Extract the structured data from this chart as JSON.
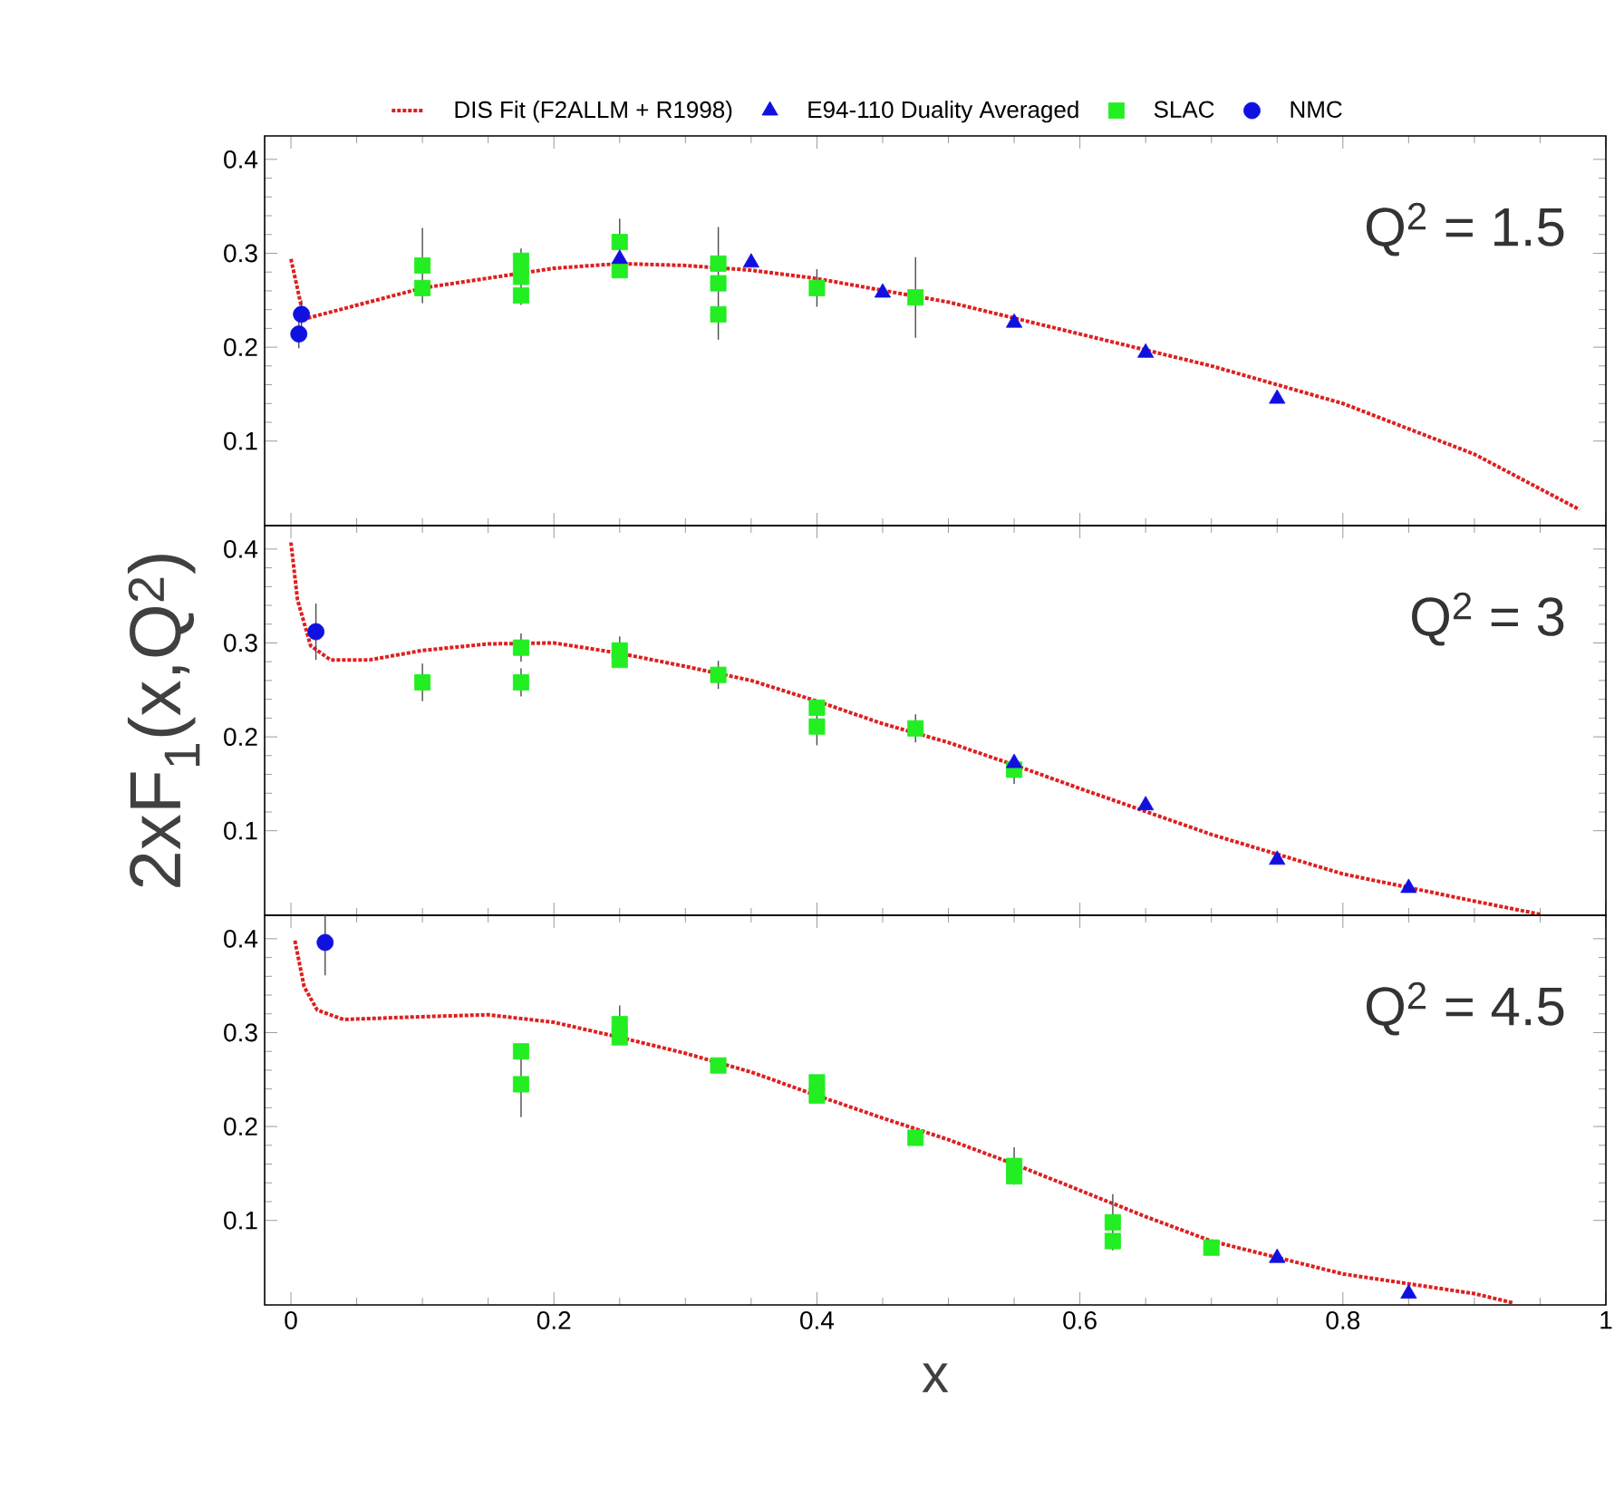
{
  "chart_data": [
    {
      "type": "scatter",
      "xlim": [
        -0.02,
        1.0
      ],
      "ylim": [
        0.01,
        0.425
      ],
      "xticks": [
        0,
        0.2,
        0.4,
        0.6,
        0.8,
        1
      ],
      "yticks": [
        0.1,
        0.2,
        0.3,
        0.4
      ],
      "tick_labels": "y",
      "legend": "top",
      "annotations": [
        "Q$^{2}$ = 1.5"
      ],
      "series": [
        {
          "name": "DIS Fit (F2ALLM + R1998)",
          "type": "line",
          "line_style": "dotted",
          "marker": "none",
          "color": "#dd2020",
          "x": [
            0,
            0.01,
            0.1,
            0.2,
            0.25,
            0.3,
            0.35,
            0.4,
            0.5,
            0.6,
            0.7,
            0.8,
            0.9,
            0.98
          ],
          "values": [
            0.294,
            0.23,
            0.263,
            0.284,
            0.289,
            0.287,
            0.282,
            0.273,
            0.248,
            0.214,
            0.18,
            0.14,
            0.086,
            0.027
          ]
        },
        {
          "name": "E94-110 Duality Averaged",
          "marker": "triangle",
          "color": "#1010e0",
          "x": [
            0.25,
            0.35,
            0.45,
            0.55,
            0.65,
            0.75
          ],
          "values": [
            0.294,
            0.29,
            0.258,
            0.226,
            0.194,
            0.145
          ]
        },
        {
          "name": "SLAC",
          "marker": "square",
          "color": "#22ee22",
          "x": [
            0.1,
            0.1,
            0.175,
            0.175,
            0.175,
            0.25,
            0.25,
            0.325,
            0.325,
            0.325,
            0.4,
            0.475
          ],
          "values": [
            0.287,
            0.263,
            0.292,
            0.275,
            0.255,
            0.312,
            0.282,
            0.289,
            0.268,
            0.235,
            0.263,
            0.253
          ],
          "errors": [
            0.04,
            null,
            null,
            0.03,
            null,
            0.025,
            null,
            null,
            0.06,
            null,
            0.02,
            0.043
          ]
        },
        {
          "name": "NMC",
          "marker": "circle",
          "color": "#1010e0",
          "x": [
            0.006,
            0.008
          ],
          "values": [
            0.214,
            0.235
          ],
          "errors": [
            0.015,
            0.015
          ]
        }
      ]
    },
    {
      "type": "scatter",
      "xlim": [
        -0.02,
        1.0
      ],
      "ylim": [
        0.01,
        0.425
      ],
      "xticks": [
        0,
        0.2,
        0.4,
        0.6,
        0.8,
        1
      ],
      "yticks": [
        0.1,
        0.2,
        0.3,
        0.4
      ],
      "tick_labels": "y",
      "ylabel": "2xF$_{1}$(x,Q$^{2}$)",
      "annotations": [
        "Q$^{2}$ = 3"
      ],
      "series": [
        {
          "type": "line",
          "line_style": "dotted",
          "marker": "none",
          "color": "#dd2020",
          "x": [
            0,
            0.005,
            0.015,
            0.03,
            0.06,
            0.1,
            0.15,
            0.2,
            0.25,
            0.3,
            0.35,
            0.4,
            0.45,
            0.5,
            0.55,
            0.6,
            0.7,
            0.8,
            0.9,
            0.95
          ],
          "values": [
            0.407,
            0.346,
            0.297,
            0.282,
            0.282,
            0.292,
            0.299,
            0.3,
            0.289,
            0.275,
            0.26,
            0.238,
            0.214,
            0.194,
            0.17,
            0.145,
            0.096,
            0.054,
            0.025,
            0.011
          ]
        },
        {
          "marker": "triangle",
          "color": "#1010e0",
          "x": [
            0.55,
            0.65,
            0.75,
            0.85
          ],
          "values": [
            0.172,
            0.127,
            0.069,
            0.039
          ]
        },
        {
          "marker": "square",
          "color": "#22ee22",
          "x": [
            0.1,
            0.175,
            0.175,
            0.25,
            0.25,
            0.325,
            0.4,
            0.4,
            0.475,
            0.55
          ],
          "values": [
            0.258,
            0.295,
            0.258,
            0.292,
            0.282,
            0.266,
            0.231,
            0.211,
            0.209,
            0.165
          ],
          "errors": [
            0.02,
            0.015,
            0.015,
            0.015,
            null,
            0.015,
            null,
            0.02,
            0.015,
            0.015
          ]
        },
        {
          "marker": "circle",
          "color": "#1010e0",
          "x": [
            0.019
          ],
          "values": [
            0.312
          ],
          "errors": [
            0.03
          ]
        }
      ]
    },
    {
      "type": "scatter",
      "xlim": [
        -0.02,
        1.0
      ],
      "ylim": [
        0.01,
        0.425
      ],
      "xticks": [
        0,
        0.2,
        0.4,
        0.6,
        0.8,
        1
      ],
      "yticks": [
        0.1,
        0.2,
        0.3,
        0.4
      ],
      "xlabel": "x",
      "annotations": [
        "Q$^{2}$ = 4.5"
      ],
      "series": [
        {
          "type": "line",
          "line_style": "dotted",
          "marker": "none",
          "color": "#dd2020",
          "x": [
            0.003,
            0.01,
            0.02,
            0.04,
            0.1,
            0.15,
            0.2,
            0.25,
            0.3,
            0.35,
            0.4,
            0.45,
            0.5,
            0.55,
            0.6,
            0.65,
            0.7,
            0.8,
            0.9,
            0.93
          ],
          "values": [
            0.398,
            0.349,
            0.324,
            0.314,
            0.317,
            0.319,
            0.311,
            0.295,
            0.278,
            0.258,
            0.233,
            0.209,
            0.186,
            0.16,
            0.132,
            0.104,
            0.078,
            0.043,
            0.022,
            0.012
          ]
        },
        {
          "marker": "triangle",
          "color": "#1010e0",
          "x": [
            0.75,
            0.85
          ],
          "values": [
            0.06,
            0.022
          ]
        },
        {
          "marker": "square",
          "color": "#22ee22",
          "x": [
            0.175,
            0.175,
            0.25,
            0.25,
            0.325,
            0.4,
            0.4,
            0.475,
            0.55,
            0.55,
            0.625,
            0.625,
            0.7
          ],
          "values": [
            0.28,
            0.245,
            0.309,
            0.295,
            0.265,
            0.247,
            0.233,
            0.188,
            0.158,
            0.147,
            0.098,
            0.078,
            0.071
          ],
          "errors": [
            null,
            0.035,
            0.02,
            null,
            null,
            null,
            null,
            null,
            0.02,
            null,
            0.03,
            null,
            null
          ]
        },
        {
          "marker": "circle",
          "color": "#1010e0",
          "x": [
            0.026
          ],
          "values": [
            0.396
          ],
          "errors": [
            0.035
          ]
        }
      ]
    }
  ]
}
